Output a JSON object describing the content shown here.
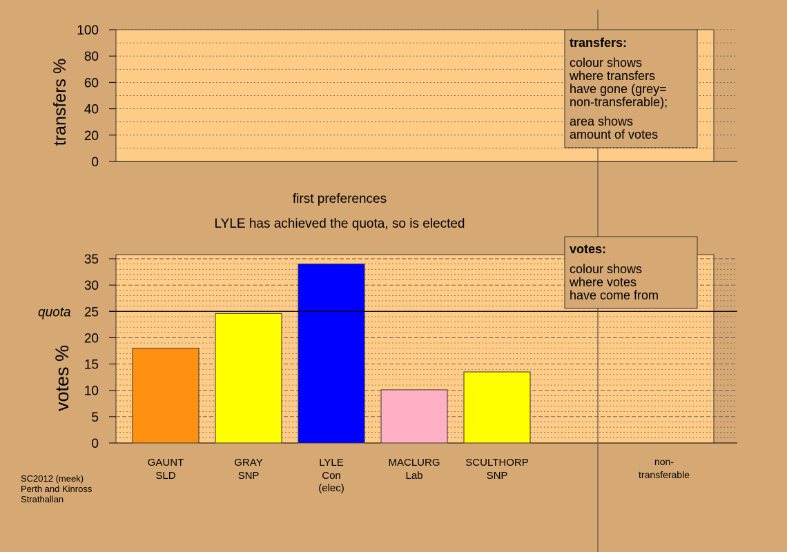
{
  "colors": {
    "background": "#d5a874",
    "plot_fill": "#ffcc88",
    "box_fill": "#d5a874",
    "axis": "#000000",
    "divider": "#555555"
  },
  "chart_data": [
    {
      "type": "bar",
      "name": "transfers",
      "ylabel": "transfers %",
      "ylim": [
        0,
        100
      ],
      "yticks": [
        "0",
        "20",
        "40",
        "60",
        "80",
        "100"
      ],
      "grid": true,
      "values": [],
      "legend": {
        "placement": "top-right",
        "title": "transfers:",
        "lines1": [
          "colour shows",
          "where transfers",
          "have gone (grey=",
          "non-transferable);"
        ],
        "lines2": [
          "area shows",
          "amount of votes"
        ]
      }
    },
    {
      "type": "bar",
      "name": "votes",
      "ylabel": "votes %",
      "ylim": [
        0,
        35
      ],
      "yticks": [
        "0",
        "5",
        "10",
        "15",
        "20",
        "25",
        "30",
        "35"
      ],
      "quota": 25,
      "quota_label": "quota",
      "grid": true,
      "categories": [
        {
          "name": "GAUNT",
          "party": "SLD",
          "note": ""
        },
        {
          "name": "GRAY",
          "party": "SNP",
          "note": ""
        },
        {
          "name": "LYLE",
          "party": "Con",
          "note": "(elec)"
        },
        {
          "name": "MACLURG",
          "party": "Lab",
          "note": ""
        },
        {
          "name": "SCULTHORP",
          "party": "SNP",
          "note": ""
        }
      ],
      "values": [
        18.0,
        24.6,
        34.0,
        10.1,
        13.5
      ],
      "bar_colors": [
        "#ff9010",
        "#ffff00",
        "#0000ff",
        "#ffb0c4",
        "#ffff00"
      ],
      "nontransferable_label_lines": [
        "non-",
        "transferable"
      ],
      "legend": {
        "placement": "top-right",
        "title": "votes:",
        "lines": [
          "colour shows",
          "where votes",
          "have come from"
        ]
      }
    }
  ],
  "headings": {
    "stage": "first preferences",
    "status": "LYLE has achieved the quota, so is elected"
  },
  "footer": {
    "lines": [
      "SC2012 (meek)",
      "Perth and Kinross",
      "Strathallan"
    ]
  }
}
